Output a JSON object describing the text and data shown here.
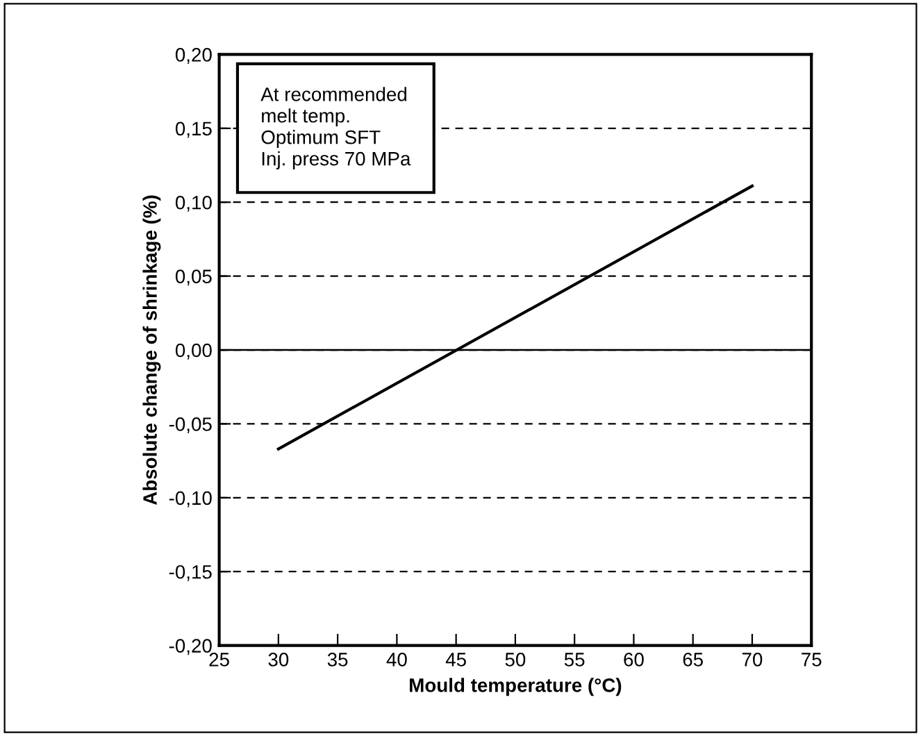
{
  "chart_data": {
    "type": "line",
    "xlabel": "Mould temperature (°C)",
    "ylabel": "Absolute change of shrinkage (%)",
    "x": [
      30,
      70
    ],
    "series": [
      {
        "color": "#000000",
        "values": [
          -0.067,
          0.111
        ]
      }
    ],
    "xlim": [
      25,
      75
    ],
    "xticks": [
      25,
      30,
      35,
      40,
      45,
      50,
      55,
      60,
      65,
      70,
      75
    ],
    "ylim": [
      -0.2,
      0.2
    ],
    "yticks": [
      {
        "value": -0.2,
        "label": "-0,20"
      },
      {
        "value": -0.15,
        "label": "-0,15"
      },
      {
        "value": -0.1,
        "label": "-0,10"
      },
      {
        "value": -0.05,
        "label": "-0,05"
      },
      {
        "value": 0,
        "label": "0,00"
      },
      {
        "value": 0.05,
        "label": "0,05"
      },
      {
        "value": 0.1,
        "label": "0,10"
      },
      {
        "value": 0.15,
        "label": "0,15"
      },
      {
        "value": 0.2,
        "label": "0,20"
      }
    ],
    "grid": "y",
    "line_style": "solid",
    "marker": "none",
    "ref_lines": [
      {
        "axis": "y",
        "value": 0,
        "color": "#000000",
        "line_style": "solid"
      }
    ],
    "annotations": [
      "At recommended\nmelt temp.\nOptimum SFT\nInj. press 70 MPa"
    ]
  }
}
